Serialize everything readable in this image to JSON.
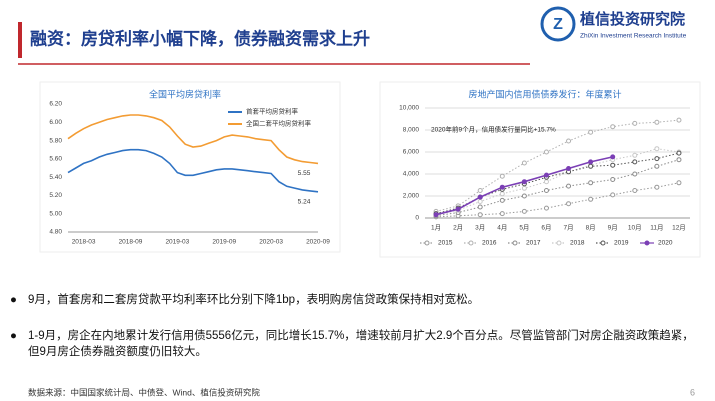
{
  "header": {
    "title": "融资：房贷利率小幅下降，债券融资需求上升",
    "logo_name": "植信投资研究院",
    "logo_en": "ZhiXin Investment Research Institute"
  },
  "chart_data": [
    {
      "type": "line",
      "title": "全国平均房贷利率",
      "categories": [
        null,
        null,
        "2018-03",
        null,
        null,
        null,
        null,
        null,
        "2018-09",
        null,
        null,
        null,
        null,
        null,
        "2019-03",
        null,
        null,
        null,
        null,
        null,
        "2019-09",
        null,
        null,
        null,
        null,
        null,
        "2020-03",
        null,
        null,
        null,
        null,
        null,
        "2020-09"
      ],
      "ylim": [
        4.8,
        6.2
      ],
      "yticks": [
        {
          "value": 4.8,
          "label": "4.80"
        },
        {
          "value": 5.0,
          "label": "5.00"
        },
        {
          "value": 5.2,
          "label": "5.20"
        },
        {
          "value": 5.4,
          "label": "5.40"
        },
        {
          "value": 5.6,
          "label": "5.60"
        },
        {
          "value": 5.8,
          "label": "5.80"
        },
        {
          "value": 6.0,
          "label": "6.00"
        },
        {
          "value": 6.2,
          "label": "6.20"
        }
      ],
      "legend": "upper right",
      "series": [
        {
          "name": "首套平均房贷利率",
          "color": "#2f73c4",
          "linestyle": "solid",
          "values": [
            5.45,
            5.5,
            5.55,
            5.58,
            5.62,
            5.65,
            5.67,
            5.69,
            5.7,
            5.7,
            5.69,
            5.66,
            5.62,
            5.55,
            5.45,
            5.42,
            5.42,
            5.44,
            5.46,
            5.48,
            5.49,
            5.49,
            5.48,
            5.47,
            5.46,
            5.45,
            5.44,
            5.35,
            5.3,
            5.28,
            5.26,
            5.25,
            5.24
          ],
          "value_labels": [
            null,
            null,
            null,
            null,
            null,
            null,
            null,
            null,
            null,
            null,
            null,
            null,
            null,
            null,
            null,
            null,
            null,
            null,
            null,
            null,
            null,
            null,
            null,
            null,
            null,
            null,
            null,
            null,
            null,
            null,
            null,
            null,
            "5.24"
          ]
        },
        {
          "name": "全国二套平均房贷利率",
          "color": "#f39c33",
          "linestyle": "solid",
          "values": [
            5.82,
            5.88,
            5.93,
            5.97,
            6.0,
            6.03,
            6.05,
            6.07,
            6.08,
            6.08,
            6.07,
            6.05,
            6.02,
            5.95,
            5.85,
            5.76,
            5.73,
            5.74,
            5.77,
            5.8,
            5.84,
            5.86,
            5.85,
            5.84,
            5.82,
            5.81,
            5.8,
            5.7,
            5.62,
            5.59,
            5.57,
            5.56,
            5.55
          ],
          "value_labels": [
            null,
            null,
            null,
            null,
            null,
            null,
            null,
            null,
            null,
            null,
            null,
            null,
            null,
            null,
            null,
            null,
            null,
            null,
            null,
            null,
            null,
            null,
            null,
            null,
            null,
            null,
            null,
            null,
            null,
            null,
            null,
            null,
            "5.55"
          ]
        }
      ]
    },
    {
      "type": "line",
      "title": "房地产国内信用债债券发行：年度累计",
      "categories": [
        "1月",
        "2月",
        "3月",
        "4月",
        "5月",
        "6月",
        "7月",
        "8月",
        "9月",
        "10月",
        "11月",
        "12月"
      ],
      "ylim": [
        0,
        10000
      ],
      "yticks": [
        0,
        {
          "value": 2000,
          "label": "2,000"
        },
        {
          "value": 4000,
          "label": "4,000"
        },
        {
          "value": 6000,
          "label": "6,000"
        },
        {
          "value": 8000,
          "label": "8,000"
        },
        {
          "value": 10000,
          "label": "10,000"
        }
      ],
      "annotation": "2020年前9个月，信用债发行量同比+15.7%",
      "legend": "bottom",
      "series": [
        {
          "name": "2015",
          "color": "#9a9a9a",
          "linestyle": "dotted",
          "values": [
            100,
            200,
            300,
            400,
            600,
            900,
            1300,
            1700,
            2100,
            2500,
            2800,
            3200
          ]
        },
        {
          "name": "2016",
          "color": "#b0b0b0",
          "linestyle": "dotted",
          "values": [
            600,
            1100,
            2500,
            3800,
            5000,
            6000,
            7000,
            7800,
            8300,
            8600,
            8700,
            8900
          ]
        },
        {
          "name": "2017",
          "color": "#8c8c8c",
          "linestyle": "dotted",
          "values": [
            200,
            500,
            1000,
            1600,
            2000,
            2500,
            2900,
            3200,
            3500,
            4000,
            4700,
            5300
          ]
        },
        {
          "name": "2018",
          "color": "#c8c8c8",
          "linestyle": "dotted",
          "values": [
            300,
            700,
            1500,
            2200,
            2700,
            3300,
            4200,
            4800,
            5300,
            5700,
            6300,
            6000
          ]
        },
        {
          "name": "2019",
          "color": "#555555",
          "linestyle": "dotted",
          "values": [
            400,
            900,
            1900,
            2600,
            3100,
            3700,
            4200,
            4700,
            4800,
            5100,
            5400,
            5900
          ]
        },
        {
          "name": "2020",
          "color": "#7b3fb5",
          "linestyle": "solid",
          "values": [
            300,
            800,
            1900,
            2800,
            3300,
            3900,
            4500,
            5100,
            5556,
            null,
            null,
            null
          ]
        }
      ]
    }
  ],
  "bullets": [
    "9月，首套房和二套房贷款平均利率环比分别下降1bp，表明购房信贷政策保持相对宽松。",
    "1-9月，房企在内地累计发行信用债5556亿元，同比增长15.7%，增速较前月扩大2.9个百分点。尽管监管部门对房企融资政策趋紧，但9月房企债券融资额度仍旧较大。"
  ],
  "source": "数据来源：中国国家统计局、中债登、Wind、植信投资研究院",
  "page_number": "6"
}
